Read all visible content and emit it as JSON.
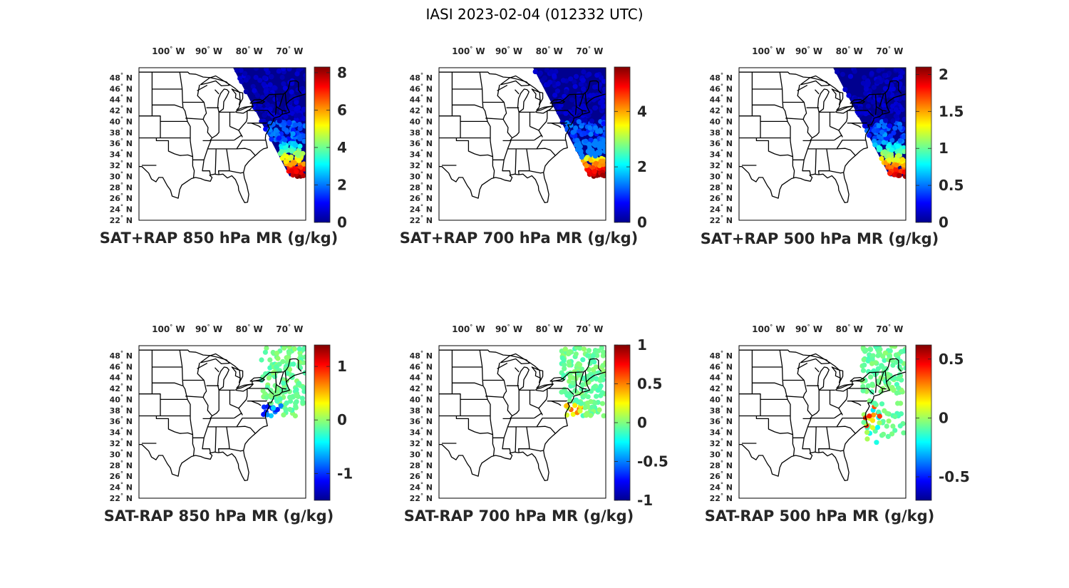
{
  "figure": {
    "title": "IASI 2023-02-04 (012332 UTC)",
    "lon_ticks": [
      "100",
      "90",
      "80",
      "70"
    ],
    "lon_hemisphere": "W",
    "lat_ticks": [
      "48",
      "46",
      "44",
      "42",
      "40",
      "38",
      "36",
      "34",
      "32",
      "30",
      "28",
      "26",
      "24",
      "22"
    ],
    "lat_hemisphere": "N",
    "degree_symbol": "°",
    "colormap": "jet",
    "colormap_stops": [
      "#00008f",
      "#0000ff",
      "#0080ff",
      "#00ffff",
      "#80ff80",
      "#ffff00",
      "#ff8000",
      "#ff0000",
      "#800000"
    ]
  },
  "panels": [
    {
      "caption": "SAT+RAP 850 hPa MR (g/kg)",
      "colorbar": {
        "min": 0,
        "max": 8.3,
        "ticks": [
          0,
          2,
          4,
          6,
          8
        ],
        "tick_labels": [
          "0",
          "2",
          "4",
          "6",
          "8"
        ]
      }
    },
    {
      "caption": "SAT+RAP 700 hPa MR (g/kg)",
      "colorbar": {
        "min": 0,
        "max": 5.6,
        "ticks": [
          0,
          2,
          4
        ],
        "tick_labels": [
          "0",
          "2",
          "4"
        ]
      }
    },
    {
      "caption": "SAT+RAP 500 hPa MR (g/kg)",
      "colorbar": {
        "min": 0,
        "max": 2.1,
        "ticks": [
          0,
          0.5,
          1,
          1.5,
          2
        ],
        "tick_labels": [
          "0",
          "0.5",
          "1",
          "1.5",
          "2"
        ]
      }
    },
    {
      "caption": "SAT-RAP 850 hPa MR (g/kg)",
      "colorbar": {
        "min": -1.5,
        "max": 1.4,
        "ticks": [
          -1,
          0,
          1
        ],
        "tick_labels": [
          "-1",
          "0",
          "1"
        ]
      }
    },
    {
      "caption": "SAT-RAP 700 hPa MR (g/kg)",
      "colorbar": {
        "min": -1,
        "max": 1,
        "ticks": [
          -1,
          -0.5,
          0,
          0.5,
          1
        ],
        "tick_labels": [
          "-1",
          "-0.5",
          "0",
          "0.5",
          "1"
        ]
      }
    },
    {
      "caption": "SAT-RAP 500 hPa MR (g/kg)",
      "colorbar": {
        "min": -0.7,
        "max": 0.62,
        "ticks": [
          -0.5,
          0,
          0.5
        ],
        "tick_labels": [
          "-0.5",
          "0",
          "0.5"
        ]
      }
    }
  ]
}
